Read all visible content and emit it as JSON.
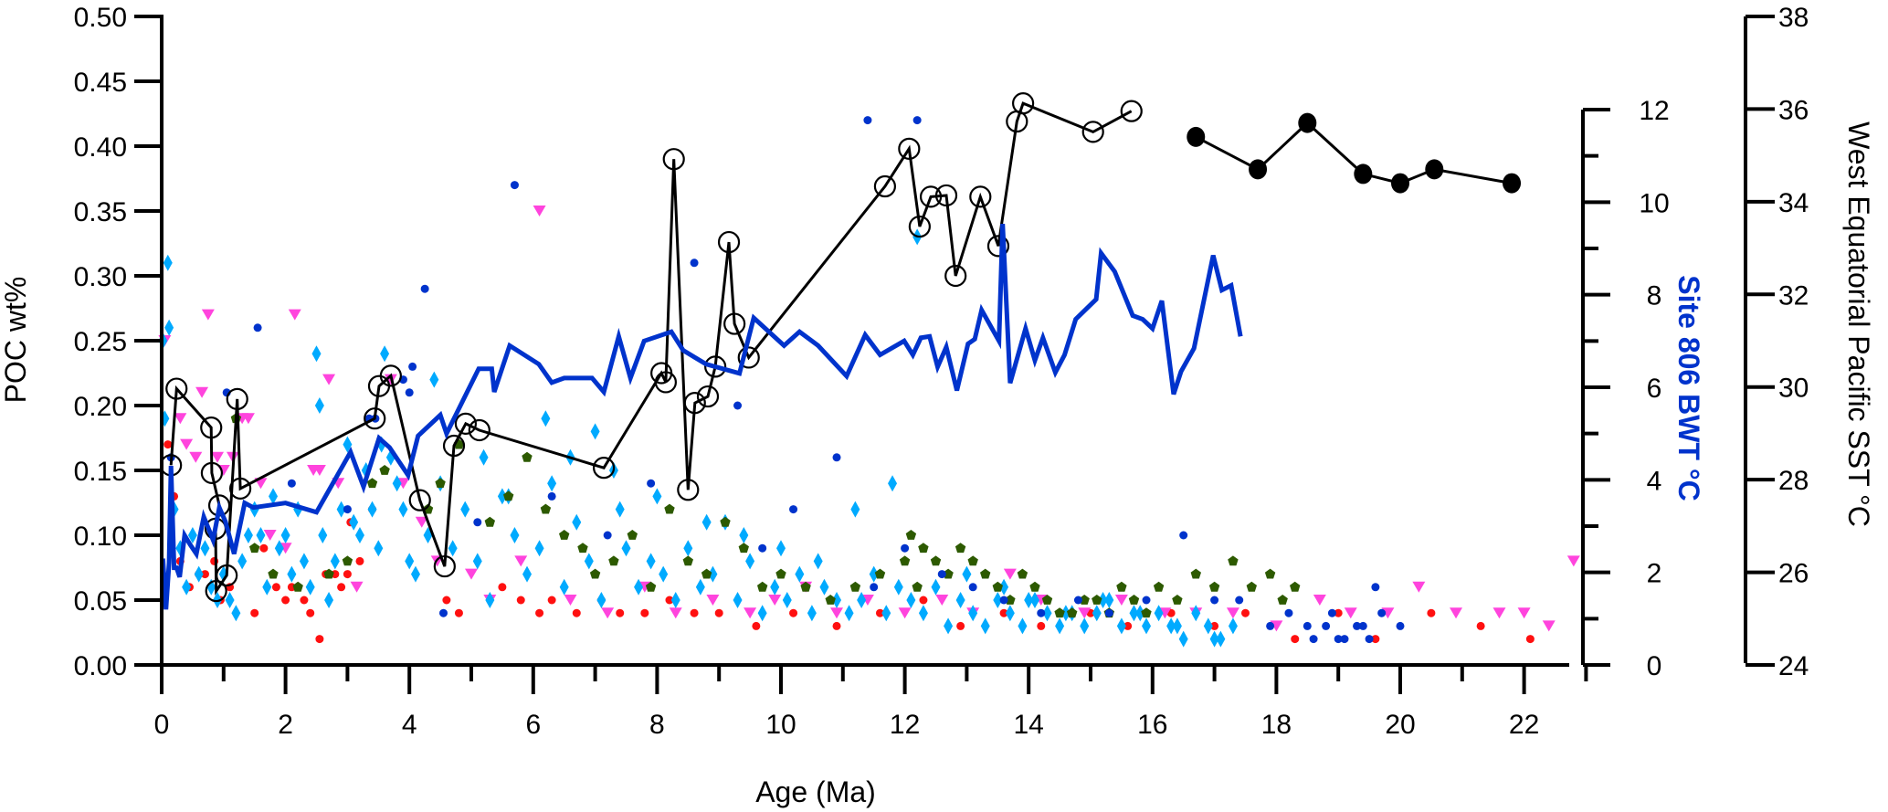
{
  "chart_data": {
    "type": "scatter",
    "title": "",
    "xlabel": "Age (Ma)",
    "ylabel": "POC wt%",
    "xlim": [
      0,
      23
    ],
    "ylim": [
      0,
      0.5
    ],
    "xticks": [
      0,
      2,
      4,
      6,
      8,
      10,
      12,
      14,
      16,
      18,
      20,
      22
    ],
    "xtick_labels": [
      "0",
      "2",
      "4",
      "6",
      "8",
      "10",
      "12",
      "14",
      "16",
      "18",
      "20",
      "22"
    ],
    "yticks": [
      0,
      0.05,
      0.1,
      0.15,
      0.2,
      0.25,
      0.3,
      0.35,
      0.4,
      0.45,
      0.5
    ],
    "ytick_labels": [
      "0.00",
      "0.05",
      "0.10",
      "0.15",
      "0.20",
      "0.25",
      "0.30",
      "0.35",
      "0.40",
      "0.45",
      "0.50"
    ],
    "grid": false,
    "legend": "none",
    "secondary_axes": [
      {
        "id": "bwt",
        "label": "Site 806 BWT °C",
        "color": "#0033cc",
        "ylim": [
          0,
          12
        ],
        "ticks": [
          0,
          1,
          2,
          3,
          4,
          5,
          6,
          7,
          8,
          9,
          10,
          11,
          12
        ],
        "tick_labels": [
          "0",
          "",
          "2",
          "",
          "4",
          "",
          "6",
          "",
          "8",
          "",
          "10",
          "",
          "12"
        ]
      },
      {
        "id": "sst",
        "label": "West Equatorial Pacific SST °C",
        "color": "#000000",
        "ylim": [
          24,
          38
        ],
        "ticks": [
          24,
          26,
          28,
          30,
          32,
          34,
          36,
          38
        ],
        "tick_labels": [
          "24",
          "26",
          "28",
          "30",
          "32",
          "34",
          "36",
          "38"
        ]
      }
    ],
    "series": [
      {
        "name": "POC open circles (line)",
        "type": "line-markers",
        "axis": "poc",
        "color": "#000000",
        "marker": "open-circle",
        "x": [
          0.15,
          0.24,
          0.8,
          0.81,
          0.93,
          0.87,
          0.88,
          1.05,
          1.22,
          1.27,
          3.44,
          3.51,
          3.7,
          4.17,
          4.57,
          4.72,
          4.91,
          5.13,
          7.14,
          8.07,
          8.14,
          8.27,
          8.5,
          8.61,
          8.82,
          8.94,
          9.16,
          9.25,
          9.48,
          11.68,
          12.07,
          12.24,
          12.42,
          12.67,
          12.82,
          13.22,
          13.51,
          13.81,
          13.91,
          15.04,
          15.66
        ],
        "y": [
          0.154,
          0.213,
          0.183,
          0.148,
          0.123,
          0.105,
          0.057,
          0.069,
          0.205,
          0.136,
          0.19,
          0.215,
          0.223,
          0.127,
          0.076,
          0.169,
          0.186,
          0.181,
          0.152,
          0.225,
          0.218,
          0.39,
          0.135,
          0.202,
          0.207,
          0.23,
          0.326,
          0.263,
          0.237,
          0.369,
          0.398,
          0.338,
          0.361,
          0.362,
          0.3,
          0.361,
          0.323,
          0.419,
          0.433,
          0.411,
          0.427
        ]
      },
      {
        "name": "Site 806 BWT",
        "type": "line",
        "axis": "bwt",
        "color": "#0033cc",
        "x": [
          0.02,
          0.07,
          0.12,
          0.15,
          0.2,
          0.24,
          0.29,
          0.37,
          0.46,
          0.56,
          0.68,
          0.83,
          0.93,
          1.03,
          1.17,
          1.34,
          1.48,
          2.0,
          2.5,
          3.05,
          3.26,
          3.51,
          3.68,
          3.98,
          4.14,
          4.5,
          4.6,
          5.12,
          5.33,
          5.37,
          5.62,
          6.09,
          6.3,
          6.5,
          6.95,
          7.14,
          7.38,
          7.57,
          7.79,
          8.23,
          8.42,
          8.79,
          9.33,
          9.56,
          10.05,
          10.3,
          10.6,
          11.06,
          11.36,
          11.6,
          11.99,
          12.13,
          12.26,
          12.4,
          12.53,
          12.67,
          12.84,
          13.02,
          13.13,
          13.24,
          13.52,
          13.58,
          13.7,
          13.95,
          14.1,
          14.23,
          14.43,
          14.58,
          14.76,
          15.09,
          15.17,
          15.39,
          15.68,
          15.84,
          16.0,
          16.15,
          16.34,
          16.46,
          16.67,
          16.98,
          17.12,
          17.27,
          17.42
        ],
        "y": [
          2.3,
          1.2,
          2.2,
          4.3,
          2.1,
          2.1,
          1.9,
          2.8,
          2.6,
          2.4,
          3.2,
          2.7,
          3.4,
          3.1,
          2.4,
          3.5,
          3.4,
          3.5,
          3.3,
          4.6,
          3.85,
          4.9,
          4.7,
          4.1,
          4.95,
          5.4,
          5.0,
          6.4,
          6.4,
          5.9,
          6.9,
          6.5,
          6.1,
          6.2,
          6.2,
          5.9,
          7.1,
          6.2,
          7.0,
          7.2,
          6.8,
          6.5,
          6.3,
          7.5,
          6.9,
          7.2,
          6.9,
          6.24,
          7.13,
          6.7,
          7.0,
          6.7,
          7.07,
          7.1,
          6.44,
          6.87,
          5.93,
          6.94,
          7.04,
          7.67,
          7.0,
          9.53,
          6.09,
          7.27,
          6.58,
          7.07,
          6.32,
          6.7,
          7.47,
          7.9,
          8.9,
          8.5,
          7.55,
          7.47,
          7.27,
          7.87,
          5.85,
          6.34,
          6.84,
          8.85,
          8.1,
          8.2,
          7.1
        ]
      },
      {
        "name": "West Equatorial Pacific SST",
        "type": "line-markers",
        "axis": "sst",
        "color": "#000000",
        "marker": "filled-circle",
        "x": [
          16.7,
          17.7,
          18.5,
          19.4,
          20.0,
          20.55,
          21.8
        ],
        "y": [
          35.4,
          34.7,
          35.7,
          34.6,
          34.4,
          34.7,
          34.4
        ]
      },
      {
        "name": "POC red circles",
        "type": "scatter",
        "axis": "poc",
        "color": "#ff1010",
        "marker": "dot",
        "x": [
          0.1,
          0.2,
          0.3,
          0.45,
          0.6,
          0.7,
          0.85,
          0.95,
          1.1,
          1.5,
          1.65,
          1.85,
          2.0,
          2.1,
          2.2,
          2.3,
          2.4,
          2.55,
          2.65,
          2.8,
          2.9,
          3.0,
          3.05,
          3.2,
          3.4,
          4.6,
          4.8,
          5.5,
          5.8,
          6.1,
          6.3,
          6.7,
          7.1,
          7.4,
          7.8,
          8.2,
          8.6,
          9.0,
          9.6,
          10.2,
          10.9,
          11.6,
          12.3,
          12.9,
          13.6,
          14.2,
          15.0,
          15.6,
          16.3,
          17.0,
          17.5,
          18.3,
          19.0,
          19.6,
          20.5,
          21.3,
          22.1
        ],
        "y": [
          0.17,
          0.13,
          0.08,
          0.06,
          0.07,
          0.07,
          0.08,
          0.05,
          0.06,
          0.04,
          0.09,
          0.06,
          0.05,
          0.06,
          0.06,
          0.05,
          0.04,
          0.02,
          0.07,
          0.07,
          0.06,
          0.07,
          0.11,
          0.08,
          0.12,
          0.05,
          0.04,
          0.06,
          0.05,
          0.04,
          0.05,
          0.04,
          0.05,
          0.04,
          0.04,
          0.05,
          0.04,
          0.04,
          0.03,
          0.04,
          0.03,
          0.04,
          0.05,
          0.03,
          0.04,
          0.03,
          0.04,
          0.03,
          0.04,
          0.03,
          0.04,
          0.02,
          0.04,
          0.02,
          0.04,
          0.03,
          0.02
        ]
      },
      {
        "name": "POC magenta triangles",
        "type": "scatter",
        "axis": "poc",
        "color": "#ff44dd",
        "marker": "triangle-down",
        "x": [
          0.05,
          0.3,
          0.4,
          0.55,
          0.65,
          0.75,
          0.9,
          1.0,
          1.15,
          1.3,
          1.4,
          1.6,
          1.75,
          2.0,
          2.15,
          2.45,
          2.55,
          2.7,
          2.85,
          3.15,
          3.7,
          3.9,
          4.2,
          4.45,
          5.0,
          5.3,
          5.8,
          6.1,
          6.6,
          7.2,
          7.8,
          8.3,
          8.9,
          9.5,
          9.9,
          10.4,
          10.9,
          11.4,
          12.0,
          12.6,
          13.1,
          13.7,
          14.2,
          14.9,
          15.5,
          16.2,
          16.7,
          17.3,
          18.0,
          18.7,
          19.2,
          19.8,
          20.3,
          20.9,
          21.6,
          22.0,
          22.4,
          22.8
        ],
        "y": [
          0.25,
          0.19,
          0.17,
          0.16,
          0.21,
          0.27,
          0.16,
          0.15,
          0.16,
          0.19,
          0.19,
          0.14,
          0.1,
          0.09,
          0.27,
          0.15,
          0.15,
          0.22,
          0.14,
          0.06,
          0.22,
          0.14,
          0.11,
          0.08,
          0.07,
          0.05,
          0.08,
          0.35,
          0.05,
          0.04,
          0.06,
          0.04,
          0.05,
          0.04,
          0.05,
          0.06,
          0.04,
          0.05,
          0.04,
          0.05,
          0.04,
          0.07,
          0.05,
          0.04,
          0.05,
          0.04,
          0.04,
          0.04,
          0.03,
          0.05,
          0.04,
          0.04,
          0.06,
          0.04,
          0.04,
          0.04,
          0.03,
          0.08
        ]
      },
      {
        "name": "POC light blue diamonds",
        "type": "scatter",
        "axis": "poc",
        "color": "#00aaff",
        "marker": "diamond",
        "x": [
          0.02,
          0.05,
          0.1,
          0.12,
          0.2,
          0.3,
          0.4,
          0.5,
          0.6,
          0.7,
          0.8,
          0.9,
          1.0,
          1.1,
          1.2,
          1.3,
          1.4,
          1.5,
          1.6,
          1.7,
          1.8,
          1.9,
          2.0,
          2.1,
          2.2,
          2.3,
          2.4,
          2.5,
          2.6,
          2.7,
          2.8,
          2.9,
          3.0,
          3.1,
          3.2,
          3.3,
          3.4,
          3.5,
          3.6,
          3.7,
          3.8,
          3.9,
          4.0,
          4.1,
          4.3,
          4.5,
          4.7,
          4.9,
          5.1,
          5.3,
          5.5,
          5.7,
          5.9,
          6.1,
          6.3,
          6.5,
          6.7,
          6.9,
          7.1,
          7.3,
          7.5,
          7.7,
          7.9,
          8.1,
          8.3,
          8.5,
          8.7,
          8.9,
          9.1,
          9.3,
          9.5,
          9.7,
          9.9,
          10.1,
          10.3,
          10.5,
          10.7,
          10.9,
          11.1,
          11.3,
          11.5,
          11.7,
          11.9,
          12.1,
          12.3,
          12.5,
          12.7,
          12.9,
          13.1,
          13.3,
          13.5,
          13.7,
          13.9,
          14.1,
          14.3,
          14.5,
          14.7,
          14.9,
          15.1,
          15.3,
          15.5,
          15.7,
          15.9,
          16.1,
          16.3,
          16.5,
          16.7,
          16.9,
          17.1,
          17.3,
          2.55,
          3.55,
          4.4,
          5.2,
          5.6,
          6.2,
          6.6,
          7.0,
          7.4,
          8.0,
          8.8,
          9.4,
          10.0,
          10.6,
          11.2,
          11.8,
          12.2,
          13.0,
          13.6,
          14.0,
          14.6,
          15.2,
          15.8,
          16.4,
          17.0
        ],
        "y": [
          0.25,
          0.19,
          0.31,
          0.26,
          0.12,
          0.09,
          0.06,
          0.1,
          0.07,
          0.09,
          0.06,
          0.05,
          0.07,
          0.05,
          0.04,
          0.08,
          0.1,
          0.12,
          0.1,
          0.06,
          0.13,
          0.09,
          0.1,
          0.07,
          0.12,
          0.08,
          0.06,
          0.24,
          0.1,
          0.05,
          0.08,
          0.12,
          0.17,
          0.11,
          0.1,
          0.15,
          0.12,
          0.09,
          0.24,
          0.16,
          0.14,
          0.12,
          0.08,
          0.07,
          0.1,
          0.14,
          0.09,
          0.12,
          0.08,
          0.05,
          0.13,
          0.1,
          0.07,
          0.09,
          0.14,
          0.06,
          0.11,
          0.08,
          0.05,
          0.15,
          0.09,
          0.06,
          0.08,
          0.07,
          0.05,
          0.09,
          0.06,
          0.07,
          0.11,
          0.05,
          0.08,
          0.04,
          0.06,
          0.05,
          0.07,
          0.04,
          0.06,
          0.05,
          0.04,
          0.05,
          0.07,
          0.04,
          0.06,
          0.05,
          0.04,
          0.06,
          0.03,
          0.05,
          0.04,
          0.03,
          0.05,
          0.04,
          0.03,
          0.05,
          0.04,
          0.03,
          0.04,
          0.03,
          0.04,
          0.05,
          0.03,
          0.04,
          0.03,
          0.04,
          0.03,
          0.02,
          0.04,
          0.03,
          0.02,
          0.03,
          0.2,
          0.17,
          0.22,
          0.16,
          0.13,
          0.19,
          0.16,
          0.18,
          0.12,
          0.13,
          0.11,
          0.1,
          0.09,
          0.08,
          0.12,
          0.14,
          0.33,
          0.07,
          0.06,
          0.05,
          0.04,
          0.05,
          0.04,
          0.03,
          0.02
        ]
      },
      {
        "name": "POC dark green pentagons",
        "type": "scatter",
        "axis": "poc",
        "color": "#2d5a00",
        "marker": "pentagon",
        "x": [
          1.2,
          1.5,
          1.8,
          2.2,
          2.7,
          3.0,
          3.4,
          3.6,
          4.3,
          4.5,
          4.8,
          5.3,
          5.6,
          5.9,
          6.2,
          6.5,
          6.8,
          7.0,
          7.3,
          7.6,
          7.9,
          8.2,
          8.5,
          8.8,
          9.1,
          9.4,
          9.7,
          10.0,
          10.4,
          10.8,
          11.2,
          11.6,
          12.0,
          12.1,
          12.2,
          12.3,
          12.5,
          12.7,
          12.9,
          13.1,
          13.3,
          13.5,
          13.7,
          13.9,
          14.1,
          14.3,
          14.5,
          14.7,
          14.9,
          15.1,
          15.3,
          15.5,
          15.7,
          15.9,
          16.1,
          16.4,
          16.7,
          17.0,
          17.3,
          17.6,
          17.9,
          18.1,
          18.3
        ],
        "y": [
          0.19,
          0.09,
          0.07,
          0.06,
          0.07,
          0.08,
          0.14,
          0.15,
          0.12,
          0.14,
          0.17,
          0.11,
          0.13,
          0.16,
          0.12,
          0.1,
          0.09,
          0.07,
          0.08,
          0.1,
          0.06,
          0.12,
          0.08,
          0.07,
          0.11,
          0.09,
          0.06,
          0.07,
          0.06,
          0.05,
          0.06,
          0.07,
          0.08,
          0.1,
          0.06,
          0.09,
          0.08,
          0.07,
          0.09,
          0.08,
          0.07,
          0.06,
          0.05,
          0.07,
          0.06,
          0.05,
          0.04,
          0.04,
          0.05,
          0.05,
          0.04,
          0.06,
          0.05,
          0.04,
          0.06,
          0.05,
          0.07,
          0.06,
          0.08,
          0.06,
          0.07,
          0.05,
          0.06
        ]
      },
      {
        "name": "POC blue circles",
        "type": "scatter",
        "axis": "poc",
        "color": "#0033cc",
        "marker": "dot",
        "x": [
          0.15,
          1.05,
          1.55,
          2.1,
          3.0,
          3.35,
          3.45,
          3.9,
          4.0,
          4.05,
          4.25,
          4.55,
          5.1,
          5.7,
          6.3,
          7.2,
          7.9,
          8.6,
          9.3,
          9.7,
          10.2,
          10.9,
          11.4,
          11.5,
          12.0,
          12.2,
          12.6,
          13.1,
          13.6,
          14.2,
          14.8,
          15.3,
          15.9,
          16.5,
          17.0,
          17.4,
          17.9,
          18.2,
          18.5,
          18.8,
          19.1,
          19.4,
          19.7,
          20.0,
          18.6,
          19.0,
          19.3,
          19.6,
          18.9,
          19.5
        ],
        "y": [
          0.16,
          0.21,
          0.26,
          0.14,
          0.12,
          0.19,
          0.19,
          0.22,
          0.21,
          0.23,
          0.29,
          0.04,
          0.11,
          0.37,
          0.13,
          0.1,
          0.14,
          0.31,
          0.2,
          0.09,
          0.12,
          0.16,
          0.42,
          0.06,
          0.09,
          0.42,
          0.07,
          0.06,
          0.05,
          0.04,
          0.05,
          0.04,
          0.05,
          0.1,
          0.05,
          0.05,
          0.03,
          0.04,
          0.03,
          0.03,
          0.02,
          0.03,
          0.04,
          0.03,
          0.02,
          0.02,
          0.03,
          0.06,
          0.04,
          0.02
        ]
      }
    ]
  }
}
